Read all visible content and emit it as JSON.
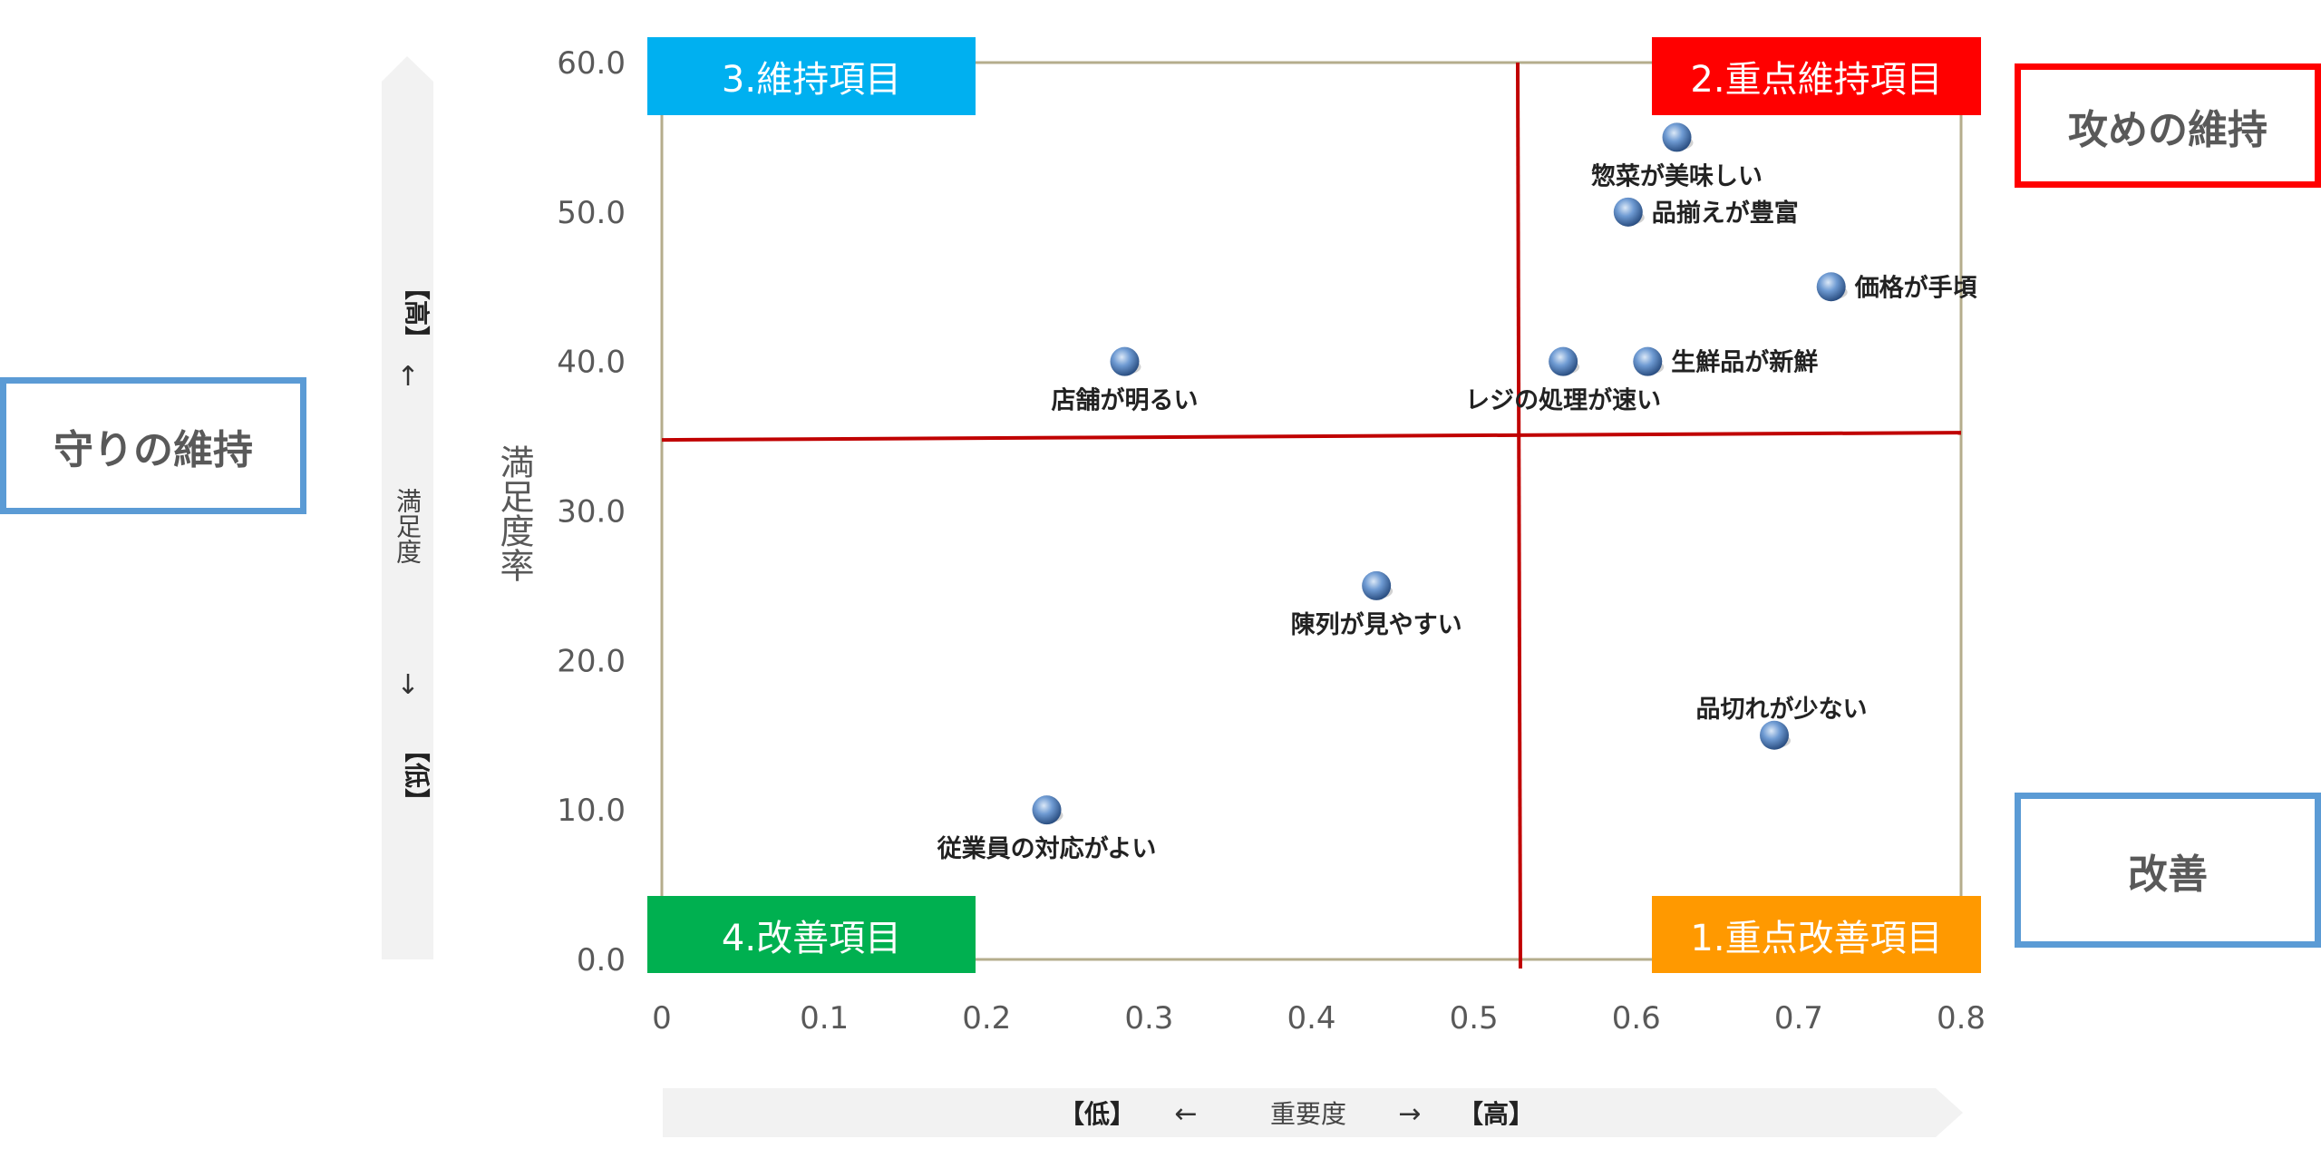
{
  "side_boxes": {
    "left": "守りの維持",
    "right_top": "攻めの維持",
    "right_bottom": "改善"
  },
  "quadrant_labels": {
    "q1": "1.重点改善項目",
    "q2": "2.重点維持項目",
    "q3": "3.維持項目",
    "q4": "4.改善項目"
  },
  "y_arrow": {
    "high": "【高】",
    "up": "↑",
    "label": "満足度",
    "down": "↓",
    "low": "【低】"
  },
  "x_arrow": {
    "low": "【低】",
    "left": "←",
    "label": "重要度",
    "right": "→",
    "high": "【高】"
  },
  "colors": {
    "q1": "#ff9900",
    "q2": "#ff0000",
    "q3": "#00b0f0",
    "q4": "#00b050",
    "blue_box": "#5b9bd5",
    "red_box": "#ff0000",
    "divider": "#c00000",
    "frame": "#b5ad8c",
    "point": "#4f81bd"
  },
  "chart_data": {
    "type": "scatter",
    "title": "",
    "xlabel": "",
    "ylabel": "満足度率",
    "xlim": [
      0,
      0.8
    ],
    "ylim": [
      0,
      60
    ],
    "x_ticks": [
      "0",
      "0.1",
      "0.2",
      "0.3",
      "0.4",
      "0.5",
      "0.6",
      "0.7",
      "0.8"
    ],
    "y_ticks": [
      "0.0",
      "10.0",
      "20.0",
      "30.0",
      "40.0",
      "50.0",
      "60.0"
    ],
    "grid": false,
    "dividers": {
      "x": 0.527,
      "y": 35
    },
    "points": [
      {
        "label": "惣菜が美味しい",
        "x": 0.625,
        "y": 55,
        "label_pos": "below"
      },
      {
        "label": "品揃えが豊富",
        "x": 0.595,
        "y": 50,
        "label_pos": "right"
      },
      {
        "label": "価格が手頃",
        "x": 0.72,
        "y": 45,
        "label_pos": "right"
      },
      {
        "label": "レジの処理が速い",
        "x": 0.555,
        "y": 40,
        "label_pos": "below"
      },
      {
        "label": "生鮮品が新鮮",
        "x": 0.607,
        "y": 40,
        "label_pos": "right"
      },
      {
        "label": "店舗が明るい",
        "x": 0.285,
        "y": 40,
        "label_pos": "below"
      },
      {
        "label": "陳列が見やすい",
        "x": 0.44,
        "y": 25,
        "label_pos": "below"
      },
      {
        "label": "品切れが少ない",
        "x": 0.685,
        "y": 15,
        "label_pos": "above"
      },
      {
        "label": "従業員の対応がよい",
        "x": 0.237,
        "y": 10,
        "label_pos": "below"
      }
    ]
  }
}
